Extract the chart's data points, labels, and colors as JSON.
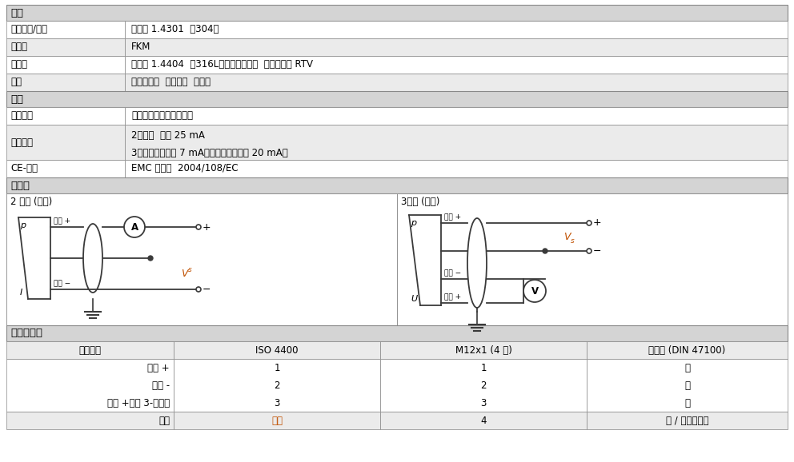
{
  "bg_color": "#ffffff",
  "section_header_bg": "#d4d4d4",
  "row_bg_white": "#ffffff",
  "row_bg_light": "#ebebeb",
  "border_color": "#888888",
  "text_color": "#000000",
  "orange_color": "#c05000",
  "section1_title": "材料",
  "section2_title": "其他",
  "section3_title": "接线图",
  "section4_title": "信号线定义",
  "rows_material": [
    [
      "压力接口/外壳",
      "不锈钢 1.4301  （304）"
    ],
    [
      "密封件",
      "FKM"
    ],
    [
      "传感器",
      "不锈钢 1.4404  （316L），硅，玻璃，  环氧树脂或 RTV"
    ],
    [
      "湿件",
      "压力接口，  密封件，  传感器"
    ]
  ],
  "rows_other": [
    [
      "适用介质",
      "压缩空气，非腐蚀性气体"
    ],
    [
      "电流限制",
      "2线制：  最大 25 mA\n3线制电压：标准 7 mA（短路电流：最大 20 mA）"
    ],
    [
      "CE-认证",
      "EMC 规范：  2004/108/EC"
    ]
  ],
  "wiring_left_title": "2 线制 (电流)",
  "wiring_right_title": "3线制 (电压)",
  "signal_header": [
    "电气连接",
    "ISO 4400",
    "M12x1 (4 针)",
    "缆线色 (DIN 47100)"
  ],
  "signal_rows": [
    [
      "电源 +",
      "1",
      "1",
      "白"
    ],
    [
      "电源 -",
      "2",
      "2",
      "褐"
    ],
    [
      "信号 +（仅 3-线制）",
      "3",
      "3",
      "绿"
    ]
  ],
  "signal_footer": [
    "地线",
    "接地",
    "4",
    "黄 / 绿（屏蔽）"
  ]
}
